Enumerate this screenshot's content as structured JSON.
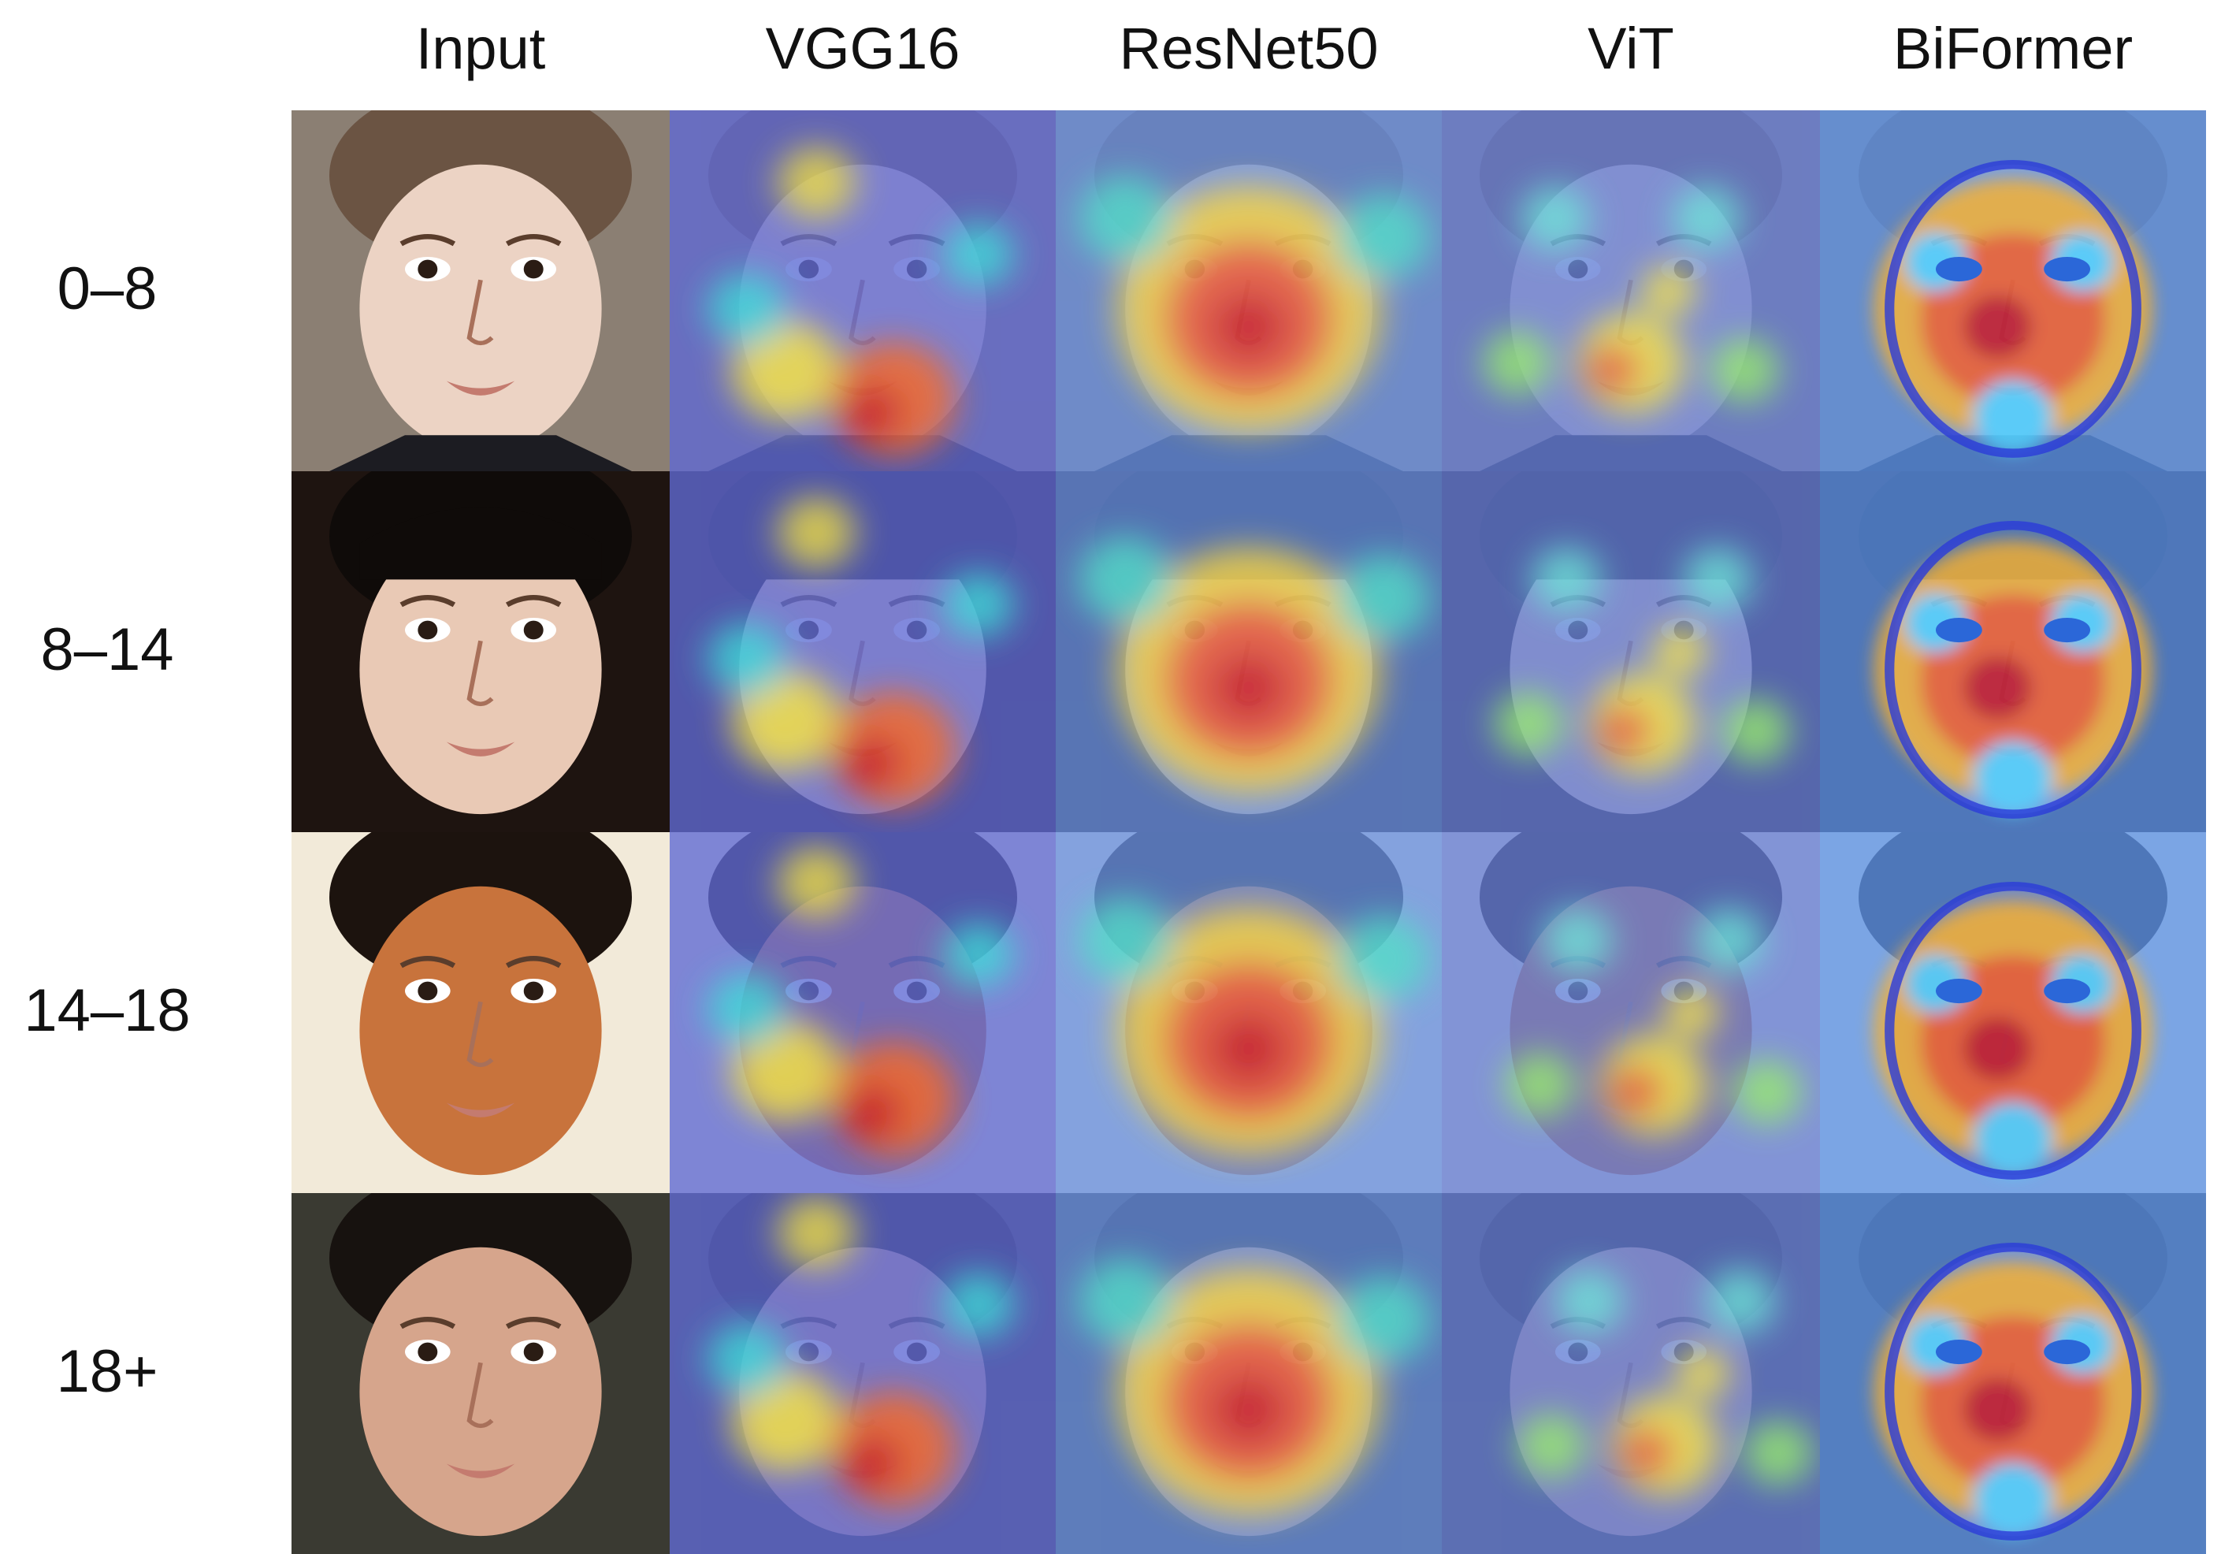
{
  "figure": {
    "columns": [
      {
        "id": "input",
        "label": "Input"
      },
      {
        "id": "vgg16",
        "label": "VGG16"
      },
      {
        "id": "resnet50",
        "label": "ResNet50"
      },
      {
        "id": "vit",
        "label": "ViT"
      },
      {
        "id": "biformer",
        "label": "BiFormer"
      }
    ],
    "rows": [
      {
        "id": "age-0-8",
        "label": "0–8"
      },
      {
        "id": "age-8-14",
        "label": "8–14"
      },
      {
        "id": "age-14-18",
        "label": "14–18"
      },
      {
        "id": "age-18-plus",
        "label": "18+"
      }
    ]
  }
}
